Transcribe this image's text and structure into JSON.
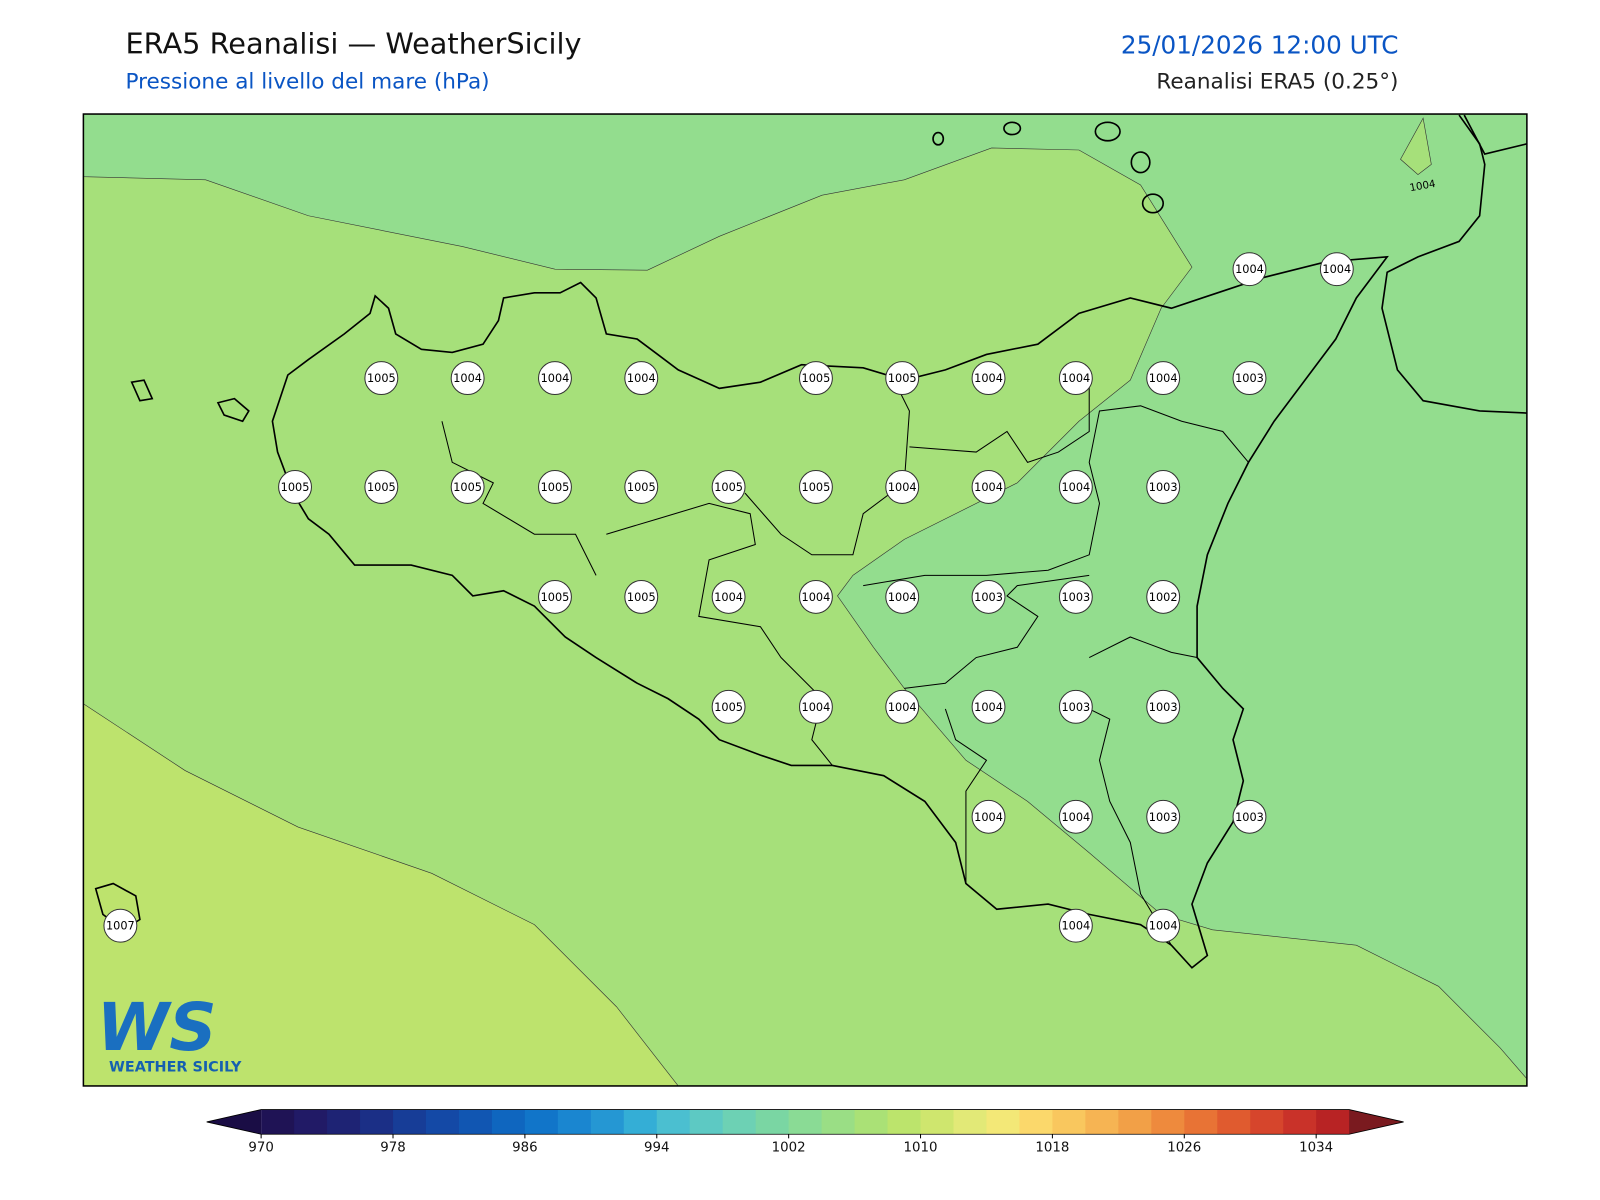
{
  "header": {
    "title": "ERA5 Reanalisi — WeatherSicily",
    "subtitle": "Pressione al livello del mare (hPa)",
    "valid_time": "25/01/2026 12:00 UTC",
    "source": "Reanalisi ERA5 (0.25°)"
  },
  "map": {
    "stations": [
      1004,
      1004,
      1005,
      1004,
      1004,
      1004,
      1005,
      1005,
      1004,
      1004,
      1004,
      1003,
      1005,
      1005,
      1005,
      1005,
      1005,
      1005,
      1005,
      1004,
      1004,
      1004,
      1003,
      1005,
      1005,
      1004,
      1004,
      1004,
      1003,
      1003,
      1002,
      1005,
      1004,
      1004,
      1004,
      1003,
      1003,
      1004,
      1004,
      1003,
      1003,
      1007,
      1004,
      1004
    ],
    "contour_label": 1004
  },
  "colorbar": {
    "lim": [
      970,
      1036
    ],
    "ticks": [
      970,
      978,
      986,
      994,
      1002,
      1010,
      1018,
      1026,
      1034
    ],
    "colors": [
      "#1f1355",
      "#211a66",
      "#1e2374",
      "#1b2f86",
      "#173d97",
      "#1449a6",
      "#1156b2",
      "#0f66bf",
      "#1175c9",
      "#1a86d0",
      "#2597d3",
      "#34aed6",
      "#4bbfd0",
      "#5dc9c3",
      "#6dd1b4",
      "#7ad6a3",
      "#8adb95",
      "#9ade85",
      "#aae176",
      "#bce46c",
      "#cfe66e",
      "#e2e977",
      "#f3e877",
      "#fbd86b",
      "#f9c75e",
      "#f6b453",
      "#f2a047",
      "#ee8a3d",
      "#e87335",
      "#e05b2f",
      "#d6452c",
      "#c93229",
      "#b82324"
    ],
    "under_color": "#1a0d45",
    "over_color": "#7a1a1f"
  },
  "logo": {
    "mark": "WS",
    "caption": "WEATHER SICILY"
  }
}
